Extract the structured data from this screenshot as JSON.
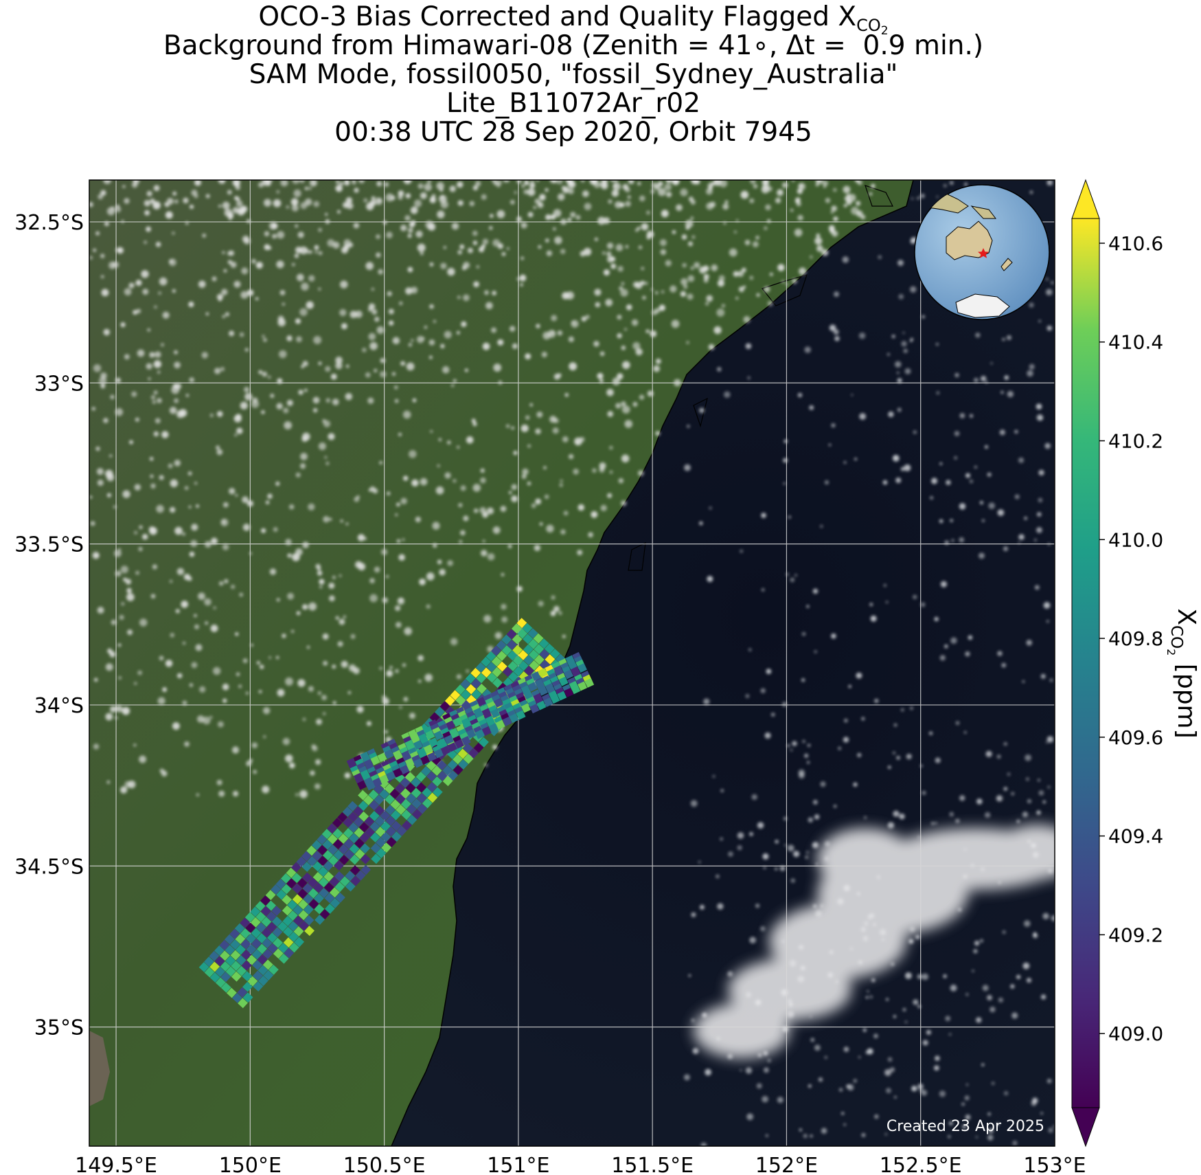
{
  "title": {
    "line1_prefix": "OCO-3 Bias Corrected and Quality Flagged X",
    "line1_subscript": "CO",
    "line1_subsub": "2",
    "line2": "Background from Himawari-08 (Zenith = 41∘, Δt =  0.9 min.)",
    "line3": "SAM Mode, fossil0050, \"fossil_Sydney_Australia\"",
    "line4": "Lite_B11072Ar_r02",
    "line5": "00:38 UTC 28 Sep 2020, Orbit 7945"
  },
  "map": {
    "lon_range": [
      149.4,
      153.0
    ],
    "lat_range": [
      -35.37,
      -32.37
    ],
    "lon_ticks": [
      "149.5°E",
      "150°E",
      "150.5°E",
      "151°E",
      "151.5°E",
      "152°E",
      "152.5°E",
      "153°E"
    ],
    "lon_tick_values": [
      149.5,
      150.0,
      150.5,
      151.0,
      151.5,
      152.0,
      152.5,
      153.0
    ],
    "lat_ticks": [
      "32.5°S",
      "33°S",
      "33.5°S",
      "34°S",
      "34.5°S",
      "35°S"
    ],
    "lat_tick_values": [
      -32.5,
      -33.0,
      -33.5,
      -34.0,
      -34.5,
      -35.0
    ],
    "land_color": "#3d5a2c",
    "ocean_color": "#0d1220",
    "gridlines": true,
    "credit": "Created 23 Apr 2025",
    "inset_globe": "Australia with red star marker at Sydney",
    "target_marker": "red-star"
  },
  "colorbar": {
    "label_prefix": "X",
    "label_sub": "CO",
    "label_subsub": "2",
    "label_suffix": " [ppm]",
    "min": 408.85,
    "max": 410.65,
    "ticks": [
      "410.6",
      "410.4",
      "410.2",
      "410.0",
      "409.8",
      "409.6",
      "409.4",
      "409.2",
      "409.0"
    ],
    "tick_values": [
      410.6,
      410.4,
      410.2,
      410.0,
      409.8,
      409.6,
      409.4,
      409.2,
      409.0
    ],
    "colormap": "viridis",
    "extend": "both"
  },
  "chart_data": {
    "type": "scatter",
    "series": [
      {
        "swath_start": [
          149.9,
          -34.87
        ],
        "swath_end": [
          151.12,
          -33.77
        ],
        "value_range": [
          408.9,
          410.7
        ]
      },
      {
        "swath_start": [
          150.4,
          -34.22
        ],
        "swath_end": [
          151.27,
          -33.88
        ],
        "value_range": [
          408.9,
          410.7
        ]
      }
    ],
    "xlabel": "",
    "ylabel": "",
    "xlim": [
      149.4,
      153.0
    ],
    "ylim": [
      -35.37,
      -32.37
    ]
  }
}
